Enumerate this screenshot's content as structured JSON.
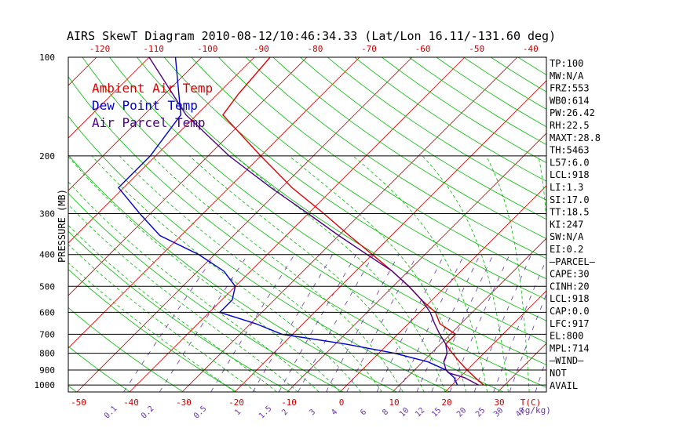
{
  "chart_data": {
    "type": "line",
    "title": "AIRS SkewT Diagram 2010-08-12/10:46:34.33 (Lat/Lon 16.11/-131.60 deg)",
    "ylabel": "PRESSURE (MB)",
    "xlabel_bottom": "T(C)",
    "mixing_ratio_unit": "(g/kg)",
    "top_temp_ticks": [
      "-120",
      "-110",
      "-100",
      "-90",
      "-80",
      "-70",
      "-60",
      "-50",
      "-40"
    ],
    "bottom_temp_ticks": [
      "-50",
      "-40",
      "-30",
      "-20",
      "-10",
      "0",
      "10",
      "20",
      "30"
    ],
    "pressure_ticks": [
      100,
      200,
      300,
      400,
      500,
      600,
      700,
      800,
      900,
      1000
    ],
    "mixing_ratio_labels": [
      "0.1",
      "0.2",
      "0.5",
      "1",
      "1.5",
      "2",
      "3",
      "4",
      "6",
      "8",
      "10",
      "12",
      "15",
      "20",
      "25",
      "30",
      "40"
    ],
    "legend": [
      "Ambient Air Temp",
      "Dew Point Temp",
      "Air Parcel Temp"
    ],
    "colors": {
      "ambient": "#e00000",
      "dewpoint": "#0000cc",
      "parcel": "#4b0082",
      "isotherm": "#cc0000",
      "dry_adiabat": "#00bb00",
      "moist_adiabat": "#00bb00",
      "mixing_ratio": "#6633aa",
      "text": "#000000"
    },
    "series": [
      {
        "name": "Ambient Air Temp",
        "points": [
          [
            100,
            -77
          ],
          [
            130,
            -76
          ],
          [
            150,
            -75
          ],
          [
            200,
            -60
          ],
          [
            250,
            -48
          ],
          [
            300,
            -37
          ],
          [
            350,
            -28
          ],
          [
            400,
            -20
          ],
          [
            450,
            -13
          ],
          [
            500,
            -7
          ],
          [
            550,
            -2
          ],
          [
            600,
            3
          ],
          [
            650,
            6
          ],
          [
            700,
            11
          ],
          [
            750,
            11
          ],
          [
            800,
            14
          ],
          [
            850,
            17
          ],
          [
            900,
            20
          ],
          [
            950,
            23
          ],
          [
            1000,
            26
          ]
        ]
      },
      {
        "name": "Dew Point Temp",
        "points": [
          [
            100,
            -95
          ],
          [
            150,
            -83
          ],
          [
            200,
            -81
          ],
          [
            250,
            -81
          ],
          [
            300,
            -72
          ],
          [
            350,
            -64
          ],
          [
            400,
            -53
          ],
          [
            450,
            -45
          ],
          [
            500,
            -40
          ],
          [
            550,
            -38
          ],
          [
            600,
            -38
          ],
          [
            650,
            -29
          ],
          [
            700,
            -22
          ],
          [
            750,
            -8
          ],
          [
            800,
            3
          ],
          [
            850,
            11
          ],
          [
            900,
            16
          ],
          [
            950,
            19
          ],
          [
            1000,
            21
          ]
        ]
      },
      {
        "name": "Air Parcel Temp",
        "points": [
          [
            100,
            -100
          ],
          [
            150,
            -82
          ],
          [
            200,
            -66
          ],
          [
            250,
            -52
          ],
          [
            300,
            -40
          ],
          [
            350,
            -30
          ],
          [
            400,
            -21
          ],
          [
            450,
            -13
          ],
          [
            500,
            -7
          ],
          [
            550,
            -2
          ],
          [
            600,
            2
          ],
          [
            650,
            5
          ],
          [
            700,
            8
          ],
          [
            750,
            11
          ],
          [
            800,
            13
          ],
          [
            850,
            14
          ],
          [
            900,
            16
          ],
          [
            918,
            17
          ],
          [
            950,
            21
          ],
          [
            1000,
            25
          ]
        ]
      }
    ],
    "stats": [
      "TP:100",
      "MW:N/A",
      "FRZ:553",
      "WB0:614",
      "PW:26.42",
      "RH:22.5",
      "MAXT:28.8",
      "TH:5463",
      "L57:6.0",
      "LCL:918",
      "LI:1.3",
      "SI:17.0",
      "TT:18.5",
      "KI:247",
      "SW:N/A",
      "EI:0.2",
      "—PARCEL—",
      "CAPE:30",
      "CINH:20",
      "LCL:918",
      "CAP:0.0",
      "LFC:917",
      "EL:800",
      "MPL:714",
      "—WIND—",
      "NOT",
      "AVAIL"
    ]
  }
}
